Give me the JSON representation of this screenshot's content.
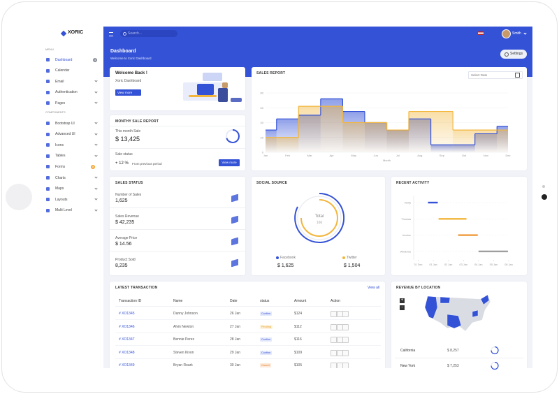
{
  "sidebar": {
    "logo": "XORIC",
    "menu_heading": "MENU",
    "menu": [
      {
        "label": "Dashboard",
        "badge": "3"
      },
      {
        "label": "Calendar"
      },
      {
        "label": "Email",
        "submenu": true
      },
      {
        "label": "Authentication",
        "submenu": true
      },
      {
        "label": "Pages",
        "submenu": true
      }
    ],
    "components_heading": "COMPONENTS",
    "components": [
      {
        "label": "Bootstrap UI",
        "submenu": true
      },
      {
        "label": "Advanced UI",
        "submenu": true
      },
      {
        "label": "Icons",
        "submenu": true
      },
      {
        "label": "Tables",
        "submenu": true
      },
      {
        "label": "Forms",
        "badge": "8"
      },
      {
        "label": "Charts",
        "submenu": true
      },
      {
        "label": "Maps",
        "submenu": true
      },
      {
        "label": "Layouts",
        "submenu": true
      },
      {
        "label": "Multi Level",
        "submenu": true
      }
    ]
  },
  "topbar": {
    "search": "Search...",
    "user": "Smith"
  },
  "header": {
    "title": "Dashboard",
    "subtitle": "Welcome to Xoric Dashboard",
    "settings": "Settings"
  },
  "welcome": {
    "title": "Welcome Back !",
    "subtitle": "Xoric Dashboard",
    "button": "View more"
  },
  "monthly": {
    "title": "MONTHY SALE REPORT",
    "label": "This month Sale",
    "value": "$ 13,425",
    "status_label": "Sale status",
    "change": "+ 12 %",
    "change_note": "From previous period",
    "button": "View more"
  },
  "sales_report": {
    "title": "SALES REPORT",
    "date_placeholder": "Select Date",
    "chart": {
      "type": "line",
      "step": true,
      "categories": [
        "Jan",
        "Feb",
        "Mar",
        "Apr",
        "May",
        "Jun",
        "Jul",
        "Aug",
        "Sep",
        "Oct",
        "Nov",
        "Dec"
      ],
      "x_label": "Month",
      "ylim": [
        0,
        80
      ],
      "yticks": [
        0,
        20,
        40,
        60,
        80
      ],
      "series": [
        {
          "color": "#3452d6",
          "values": [
            30,
            45,
            50,
            72,
            55,
            40,
            30,
            45,
            10,
            10,
            25,
            35
          ]
        },
        {
          "color": "#f2b63c",
          "values": [
            20,
            20,
            62,
            62,
            40,
            40,
            30,
            55,
            55,
            30,
            30,
            30
          ]
        }
      ]
    }
  },
  "sales_status": {
    "title": "SALES STATUS",
    "items": [
      {
        "label": "Number of Sales",
        "value": "1,625"
      },
      {
        "label": "Sales Revenue",
        "value": "$ 42,235"
      },
      {
        "label": "Average Price",
        "value": "$ 14.56"
      },
      {
        "label": "Product Sold",
        "value": "8,235"
      }
    ]
  },
  "social_source": {
    "title": "SOCIAL SOURCE",
    "total_label": "Total",
    "total": "166",
    "sources": [
      {
        "name": "Facebook",
        "value": "$ 1,625",
        "color": "#3452d6"
      },
      {
        "name": "Twitter",
        "value": "$ 1,504",
        "color": "#f2b63c"
      }
    ]
  },
  "recent_activity": {
    "title": "RECENT ACTIVITY",
    "chart": {
      "type": "timeline",
      "xlim": [
        -0.3,
        6
      ],
      "xticks": [
        {
          "value": 0,
          "label": "31 Dec"
        },
        {
          "value": 1,
          "label": "01 Jan"
        },
        {
          "value": 2,
          "label": "02 Jan"
        },
        {
          "value": 3,
          "label": "03 Jan"
        },
        {
          "value": 4,
          "label": "04 Jan"
        },
        {
          "value": 5,
          "label": "05 Jan"
        },
        {
          "value": 6,
          "label": "06 Jan"
        }
      ],
      "tasks": [
        {
          "name": "Verify",
          "start": 0.65,
          "end": 1.3,
          "color": "#3452d6"
        },
        {
          "name": "Thomas",
          "start": 1.35,
          "end": 3.2,
          "color": "#f2b63c"
        },
        {
          "name": "Invoice",
          "start": 2.65,
          "end": 3.95,
          "color": "#ef9a3c"
        },
        {
          "name": "Windows",
          "start": 4.0,
          "end": 5.95,
          "color": "#9e9e9e"
        }
      ]
    }
  },
  "transactions": {
    "title": "LATEST TRANSACTION",
    "view_all": "View all",
    "columns": [
      "Transaction ID",
      "Name",
      "Date",
      "status",
      "Amount",
      "Action"
    ],
    "rows": [
      [
        "# XO1345",
        "Danny Johnson",
        "26 Jan",
        "Confirm",
        "$124"
      ],
      [
        "# XO1346",
        "Alvin Newton",
        "27 Jan",
        "Pending",
        "$112"
      ],
      [
        "# XO1347",
        "Bennie Perez",
        "28 Jan",
        "Confirm",
        "$116"
      ],
      [
        "# XO1348",
        "Steven Kivon",
        "29 Jan",
        "Confirm",
        "$109"
      ],
      [
        "# XO1349",
        "Bryan Roark",
        "30 Jan",
        "Cancel",
        "$105"
      ]
    ]
  },
  "revenue_location": {
    "title": "REVENUE BY LOCATION",
    "zoom_in": "+",
    "zoom_out": "-",
    "locations": [
      {
        "name": "California",
        "value": "$ 8,257"
      },
      {
        "name": "New York",
        "value": "$ 7,253"
      }
    ]
  }
}
